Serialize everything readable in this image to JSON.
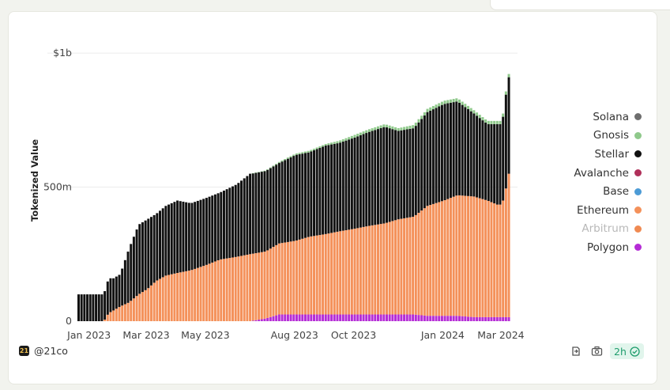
{
  "footer": {
    "brand": "@21co",
    "refresh_label": "2h"
  },
  "colors": {
    "Solana": "#6e6e6e",
    "Gnosis": "#8fc98b",
    "Stellar": "#111111",
    "Avalanche": "#b0305a",
    "Base": "#4c9bd6",
    "Ethereum": "#f4915a",
    "Arbitrum": "#f08a52",
    "Polygon": "#b52cd6"
  },
  "chart_data": {
    "type": "area",
    "ylabel": "Tokenized Value",
    "xlabel": "",
    "y_ticks": [
      "$1b",
      "500m",
      "0"
    ],
    "y_tick_values": [
      1000000000,
      500000000,
      0
    ],
    "ylim": [
      0,
      1080000000
    ],
    "x_tick_labels": [
      "Jan 2023",
      "Mar 2023",
      "May 2023",
      "Aug 2023",
      "Oct 2023",
      "Jan 2024",
      "Mar 2024"
    ],
    "x_tick_dates": [
      "2023-01-01",
      "2023-03-01",
      "2023-05-01",
      "2023-08-01",
      "2023-10-01",
      "2024-01-01",
      "2024-03-01"
    ],
    "x_range": [
      "2022-12-20",
      "2024-03-10"
    ],
    "legend": {
      "placement": "right",
      "items": [
        {
          "name": "Solana",
          "dimmed": false
        },
        {
          "name": "Gnosis",
          "dimmed": false
        },
        {
          "name": "Stellar",
          "dimmed": false
        },
        {
          "name": "Avalanche",
          "dimmed": false
        },
        {
          "name": "Base",
          "dimmed": false
        },
        {
          "name": "Ethereum",
          "dimmed": false
        },
        {
          "name": "Arbitrum",
          "dimmed": true
        },
        {
          "name": "Polygon",
          "dimmed": false
        }
      ]
    },
    "grid": "horizontal",
    "stacked": true,
    "dates": [
      "2022-12-20",
      "2023-01-15",
      "2023-01-20",
      "2023-01-25",
      "2023-02-01",
      "2023-02-10",
      "2023-02-20",
      "2023-03-01",
      "2023-03-10",
      "2023-03-20",
      "2023-04-01",
      "2023-04-15",
      "2023-05-01",
      "2023-05-15",
      "2023-06-01",
      "2023-06-15",
      "2023-07-01",
      "2023-07-15",
      "2023-08-01",
      "2023-08-15",
      "2023-09-01",
      "2023-09-15",
      "2023-10-01",
      "2023-10-15",
      "2023-11-01",
      "2023-11-15",
      "2023-12-01",
      "2023-12-15",
      "2024-01-01",
      "2024-01-15",
      "2024-02-01",
      "2024-02-15",
      "2024-02-25",
      "2024-03-01",
      "2024-03-05",
      "2024-03-08",
      "2024-03-10"
    ],
    "series": [
      {
        "name": "Polygon",
        "values": [
          0,
          0,
          0,
          0,
          0,
          0,
          0,
          0,
          0,
          0,
          0,
          0,
          0,
          0,
          0,
          0,
          10,
          25,
          25,
          25,
          25,
          25,
          25,
          25,
          25,
          25,
          25,
          20,
          20,
          20,
          15,
          15,
          15,
          15,
          15,
          15,
          15
        ]
      },
      {
        "name": "Arbitrum",
        "values": [
          0,
          0,
          0,
          0,
          0,
          0,
          0,
          0,
          0,
          0,
          0,
          0,
          0,
          0,
          0,
          0,
          0,
          0,
          0,
          0,
          0,
          0,
          0,
          0,
          0,
          0,
          0,
          0,
          0,
          0,
          0,
          0,
          0,
          0,
          0,
          0,
          0
        ]
      },
      {
        "name": "Ethereum",
        "values": [
          0,
          0,
          30,
          40,
          55,
          70,
          100,
          120,
          150,
          170,
          180,
          190,
          210,
          230,
          240,
          250,
          250,
          265,
          275,
          290,
          300,
          310,
          320,
          330,
          340,
          355,
          365,
          410,
          430,
          450,
          450,
          435,
          420,
          420,
          480,
          535,
          605
        ]
      },
      {
        "name": "Base",
        "values": [
          0,
          0,
          0,
          0,
          0,
          0,
          0,
          0,
          0,
          0,
          0,
          0,
          0,
          0,
          0,
          0,
          0,
          0,
          0,
          0,
          0,
          0,
          0,
          0,
          0,
          0,
          0,
          0,
          0,
          0,
          0,
          0,
          0,
          0,
          0,
          0,
          0
        ]
      },
      {
        "name": "Avalanche",
        "values": [
          0,
          0,
          0,
          0,
          0,
          0,
          0,
          0,
          0,
          0,
          0,
          0,
          0,
          0,
          0,
          0,
          0,
          0,
          0,
          0,
          0,
          0,
          0,
          0,
          0,
          0,
          0,
          0,
          0,
          0,
          0,
          0,
          0,
          0,
          0,
          0,
          0
        ]
      },
      {
        "name": "Stellar",
        "values": [
          100,
          100,
          130,
          120,
          120,
          200,
          260,
          260,
          250,
          260,
          270,
          250,
          250,
          250,
          270,
          300,
          300,
          300,
          320,
          315,
          330,
          330,
          340,
          350,
          360,
          330,
          330,
          350,
          360,
          350,
          310,
          285,
          300,
          300,
          350,
          360,
          390
        ]
      },
      {
        "name": "Gnosis",
        "values": [
          0,
          0,
          0,
          0,
          0,
          0,
          0,
          0,
          0,
          0,
          0,
          0,
          0,
          0,
          0,
          0,
          2,
          4,
          5,
          6,
          6,
          8,
          10,
          10,
          10,
          10,
          12,
          12,
          12,
          12,
          12,
          12,
          12,
          12,
          12,
          12,
          12
        ]
      },
      {
        "name": "Solana",
        "values": [
          0,
          0,
          0,
          0,
          0,
          0,
          0,
          0,
          0,
          0,
          0,
          0,
          0,
          0,
          0,
          0,
          0,
          0,
          0,
          0,
          0,
          0,
          0,
          0,
          0,
          0,
          0,
          0,
          0,
          0,
          0,
          0,
          0,
          0,
          0,
          0,
          0
        ]
      }
    ],
    "value_unit": "millions USD"
  }
}
